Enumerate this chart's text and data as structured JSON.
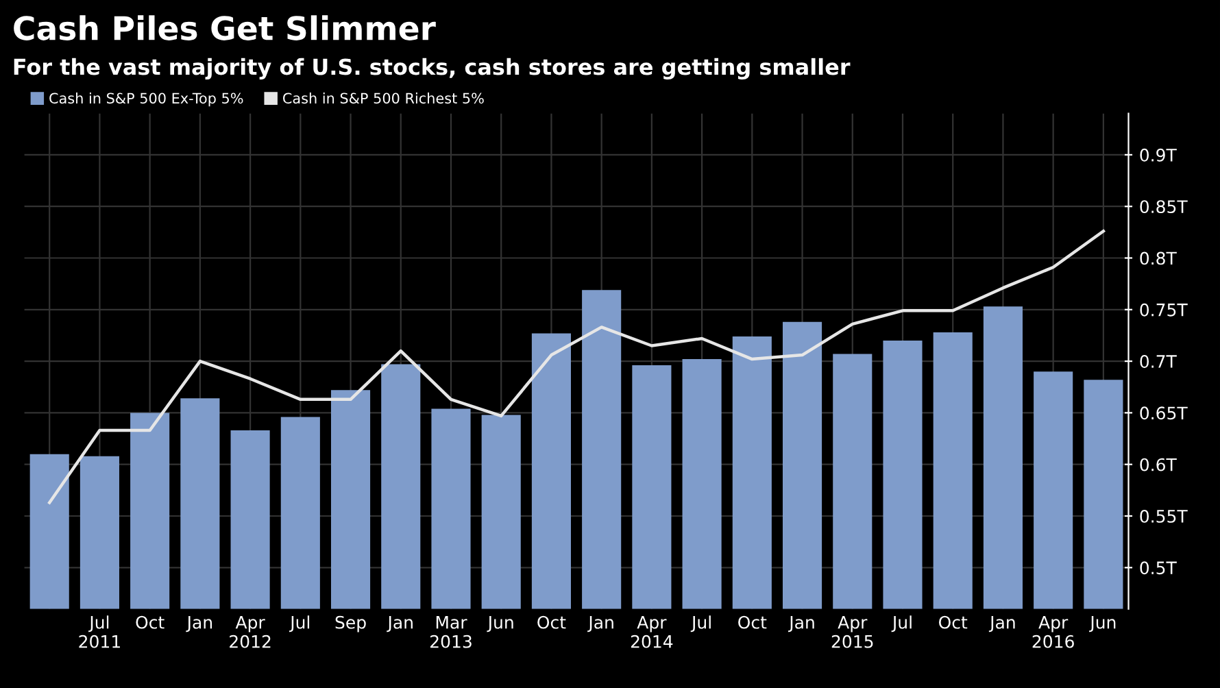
{
  "chart_data": {
    "type": "bar",
    "title": "Cash Piles Get Slimmer",
    "subtitle": "For the vast majority of U.S. stocks, cash stores are getting smaller",
    "categories": [
      null,
      "Jul\n2011",
      "Oct",
      "Jan",
      "Apr\n2012",
      "Jul",
      "Sep",
      "Jan",
      "Mar\n2013",
      "Jun",
      "Oct",
      "Jan",
      "Apr\n2014",
      "Jul",
      "Oct",
      "Jan",
      "Apr\n2015",
      "Jul",
      "Oct",
      "Jan",
      "Apr\n2016",
      "Jun"
    ],
    "series": [
      {
        "name": "Cash in S&P 500 Ex-Top 5%",
        "color": "#7f9ccb",
        "values": [
          0.61,
          0.608,
          0.65,
          0.664,
          0.633,
          0.646,
          0.672,
          0.697,
          0.654,
          0.648,
          0.727,
          0.769,
          0.696,
          0.702,
          0.724,
          0.738,
          0.707,
          0.72,
          0.728,
          0.753,
          0.69,
          0.682
        ]
      },
      {
        "name": "Cash in S&P 500 Richest 5%",
        "type": "line",
        "color": "#e6e6e6",
        "values": [
          0.563,
          0.633,
          0.633,
          0.7,
          0.683,
          0.663,
          0.663,
          0.71,
          0.663,
          0.647,
          0.706,
          0.733,
          0.715,
          0.722,
          0.702,
          0.706,
          0.736,
          0.749,
          0.749,
          0.771,
          0.791,
          0.826
        ]
      }
    ],
    "ylim": [
      0.46,
      0.94
    ],
    "yticks": [
      {
        "value": 0.5,
        "label": "0.5T"
      },
      {
        "value": 0.55,
        "label": "0.55T"
      },
      {
        "value": 0.6,
        "label": "0.6T"
      },
      {
        "value": 0.65,
        "label": "0.65T"
      },
      {
        "value": 0.7,
        "label": "0.7T"
      },
      {
        "value": 0.75,
        "label": "0.75T"
      },
      {
        "value": 0.8,
        "label": "0.8T"
      },
      {
        "value": 0.85,
        "label": "0.85T"
      },
      {
        "value": 0.9,
        "label": "0.9T"
      }
    ],
    "grid": true,
    "legend": "top left"
  }
}
